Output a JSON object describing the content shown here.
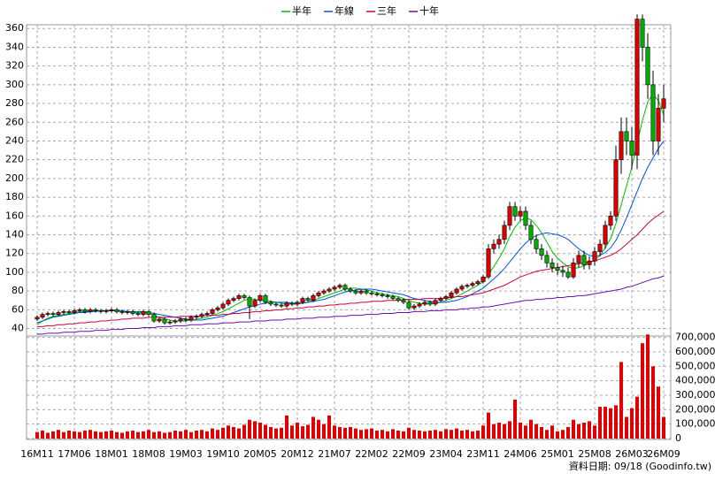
{
  "chart_data": {
    "type": "candlestick",
    "categories": [
      "16M11",
      null,
      null,
      null,
      null,
      null,
      null,
      "17M06",
      null,
      null,
      null,
      null,
      null,
      null,
      "18M01",
      null,
      null,
      null,
      null,
      null,
      null,
      "18M08",
      null,
      null,
      null,
      null,
      null,
      null,
      "19M03",
      null,
      null,
      null,
      null,
      null,
      null,
      "19M10",
      null,
      null,
      null,
      null,
      null,
      null,
      "20M05",
      null,
      null,
      null,
      null,
      null,
      null,
      "20M12",
      null,
      null,
      null,
      null,
      null,
      null,
      "21M07",
      null,
      null,
      null,
      null,
      null,
      null,
      "22M02",
      null,
      null,
      null,
      null,
      null,
      null,
      "22M09",
      null,
      null,
      null,
      null,
      null,
      null,
      "23M04",
      null,
      null,
      null,
      null,
      null,
      null,
      "23M11",
      null,
      null,
      null,
      null,
      null,
      null,
      "24M06",
      null,
      null,
      null,
      null,
      null,
      null,
      "25M01",
      null,
      null,
      null,
      null,
      null,
      null,
      "25M08",
      null,
      null,
      null,
      null,
      null,
      null,
      "26M03",
      null,
      null,
      null,
      null,
      null,
      "26M09"
    ],
    "open": [
      50,
      52,
      55,
      56,
      55,
      57,
      58,
      57,
      59,
      60,
      58,
      60,
      59,
      58,
      59,
      60,
      58,
      57,
      58,
      56,
      55,
      58,
      55,
      48,
      50,
      46,
      47,
      48,
      50,
      49,
      52,
      53,
      55,
      56,
      60,
      62,
      66,
      70,
      72,
      75,
      73,
      64,
      70,
      75,
      68,
      66,
      65,
      64,
      67,
      66,
      68,
      72,
      70,
      75,
      78,
      80,
      82,
      84,
      86,
      82,
      80,
      78,
      80,
      78,
      77,
      76,
      75,
      74,
      72,
      70,
      68,
      62,
      64,
      66,
      68,
      66,
      70,
      72,
      74,
      78,
      82,
      85,
      86,
      88,
      90,
      95,
      125,
      130,
      135,
      150,
      170,
      160,
      165,
      150,
      135,
      125,
      118,
      110,
      105,
      102,
      100,
      95,
      110,
      118,
      108,
      112,
      122,
      130,
      150,
      160,
      220,
      250,
      240,
      225,
      370,
      340,
      300,
      240,
      275
    ],
    "high": [
      54,
      57,
      58,
      58,
      59,
      60,
      60,
      61,
      62,
      62,
      62,
      62,
      61,
      61,
      62,
      62,
      60,
      60,
      60,
      58,
      60,
      60,
      57,
      52,
      52,
      49,
      50,
      52,
      52,
      54,
      55,
      57,
      58,
      62,
      64,
      68,
      72,
      74,
      77,
      77,
      75,
      72,
      77,
      77,
      70,
      68,
      67,
      69,
      69,
      70,
      74,
      74,
      77,
      80,
      82,
      84,
      86,
      88,
      88,
      84,
      82,
      82,
      82,
      80,
      79,
      78,
      77,
      76,
      74,
      72,
      70,
      66,
      68,
      70,
      70,
      72,
      74,
      76,
      80,
      84,
      87,
      88,
      90,
      92,
      97,
      130,
      135,
      140,
      155,
      175,
      175,
      170,
      170,
      155,
      140,
      130,
      123,
      115,
      110,
      107,
      105,
      115,
      123,
      123,
      117,
      127,
      135,
      155,
      165,
      235,
      265,
      265,
      255,
      375,
      375,
      355,
      315,
      290,
      300
    ],
    "low": [
      48,
      50,
      53,
      53,
      53,
      55,
      55,
      55,
      57,
      56,
      56,
      57,
      56,
      56,
      57,
      56,
      55,
      55,
      54,
      53,
      53,
      53,
      46,
      46,
      44,
      44,
      45,
      46,
      47,
      47,
      50,
      51,
      53,
      54,
      58,
      60,
      64,
      68,
      70,
      71,
      50,
      62,
      68,
      66,
      64,
      63,
      62,
      62,
      64,
      64,
      66,
      68,
      68,
      73,
      76,
      78,
      80,
      82,
      80,
      78,
      76,
      76,
      76,
      75,
      74,
      73,
      72,
      70,
      68,
      66,
      60,
      60,
      62,
      64,
      64,
      64,
      68,
      70,
      72,
      76,
      80,
      83,
      84,
      86,
      88,
      93,
      120,
      125,
      130,
      145,
      155,
      155,
      145,
      130,
      120,
      113,
      105,
      100,
      97,
      95,
      93,
      93,
      105,
      103,
      103,
      107,
      117,
      125,
      145,
      155,
      205,
      225,
      210,
      210,
      325,
      285,
      225,
      225,
      260
    ],
    "close": [
      52,
      55,
      56,
      55,
      57,
      58,
      57,
      59,
      60,
      58,
      60,
      59,
      58,
      59,
      60,
      58,
      57,
      58,
      56,
      55,
      58,
      55,
      48,
      50,
      46,
      47,
      48,
      50,
      49,
      52,
      53,
      55,
      56,
      60,
      62,
      66,
      70,
      72,
      75,
      73,
      64,
      70,
      75,
      68,
      66,
      65,
      64,
      67,
      66,
      68,
      72,
      70,
      75,
      78,
      80,
      82,
      84,
      86,
      82,
      80,
      78,
      80,
      78,
      77,
      76,
      75,
      74,
      72,
      70,
      68,
      62,
      64,
      66,
      68,
      66,
      70,
      72,
      74,
      78,
      82,
      85,
      86,
      88,
      90,
      95,
      125,
      130,
      135,
      150,
      170,
      160,
      165,
      150,
      135,
      125,
      118,
      110,
      105,
      102,
      100,
      95,
      110,
      118,
      108,
      112,
      122,
      130,
      150,
      160,
      220,
      250,
      240,
      225,
      370,
      340,
      300,
      240,
      275,
      285
    ],
    "up_color": "#e00000",
    "down_color": "#00b000",
    "ylim": [
      32,
      364
    ],
    "yticks": [
      40,
      60,
      80,
      100,
      120,
      140,
      160,
      180,
      200,
      220,
      240,
      260,
      280,
      300,
      320,
      340,
      360
    ],
    "grid": true,
    "legend": "top",
    "series": [
      {
        "name": "半年",
        "color": "#00c000",
        "values": [
          44,
          48,
          51,
          53,
          54,
          55,
          56,
          57,
          58,
          58,
          59,
          59,
          59,
          59,
          59,
          59,
          58,
          58,
          57,
          57,
          57,
          56,
          54,
          52,
          50,
          49,
          48,
          48,
          48,
          49,
          50,
          51,
          52,
          54,
          56,
          58,
          61,
          64,
          67,
          70,
          72,
          71,
          70,
          70,
          69,
          68,
          67,
          66,
          66,
          66,
          67,
          68,
          70,
          72,
          74,
          76,
          78,
          80,
          82,
          83,
          83,
          82,
          81,
          80,
          78,
          77,
          76,
          75,
          74,
          72,
          70,
          68,
          67,
          66,
          66,
          67,
          68,
          70,
          72,
          74,
          77,
          80,
          83,
          86,
          90,
          98,
          106,
          115,
          125,
          138,
          148,
          155,
          158,
          156,
          150,
          142,
          132,
          122,
          115,
          110,
          106,
          104,
          105,
          107,
          110,
          113,
          118,
          126,
          136,
          152,
          172,
          192,
          212,
          238,
          262,
          282,
          290,
          283,
          268
        ]
      },
      {
        "name": "年線",
        "color": "#0050f0",
        "values": [
          46,
          48,
          50,
          52,
          53,
          54,
          55,
          56,
          57,
          57,
          58,
          58,
          59,
          59,
          59,
          59,
          59,
          58,
          58,
          58,
          58,
          57,
          56,
          55,
          54,
          53,
          52,
          51,
          50,
          49,
          49,
          49,
          50,
          51,
          52,
          53,
          55,
          57,
          59,
          61,
          63,
          64,
          66,
          67,
          68,
          68,
          68,
          68,
          67,
          67,
          67,
          68,
          69,
          70,
          71,
          73,
          75,
          77,
          79,
          80,
          81,
          82,
          82,
          82,
          81,
          80,
          79,
          78,
          77,
          76,
          74,
          72,
          71,
          70,
          69,
          68,
          68,
          68,
          69,
          70,
          72,
          74,
          77,
          80,
          83,
          88,
          93,
          98,
          104,
          111,
          118,
          125,
          131,
          136,
          139,
          141,
          142,
          141,
          140,
          138,
          135,
          130,
          125,
          121,
          118,
          117,
          118,
          121,
          126,
          134,
          145,
          158,
          172,
          186,
          200,
          212,
          222,
          232,
          240
        ]
      },
      {
        "name": "三年",
        "color": "#d0003c",
        "values": [
          42,
          42,
          43,
          43,
          44,
          44,
          45,
          45,
          46,
          46,
          47,
          47,
          48,
          48,
          49,
          49,
          50,
          50,
          51,
          51,
          51,
          52,
          52,
          52,
          52,
          52,
          52,
          53,
          53,
          53,
          53,
          53,
          54,
          54,
          54,
          55,
          55,
          56,
          56,
          57,
          57,
          58,
          58,
          59,
          59,
          60,
          60,
          61,
          61,
          62,
          62,
          63,
          63,
          64,
          64,
          65,
          65,
          66,
          66,
          67,
          67,
          68,
          68,
          69,
          69,
          69,
          70,
          70,
          70,
          71,
          71,
          71,
          71,
          72,
          72,
          72,
          72,
          73,
          73,
          74,
          74,
          75,
          76,
          77,
          78,
          80,
          82,
          84,
          86,
          89,
          92,
          95,
          97,
          99,
          101,
          102,
          103,
          104,
          105,
          106,
          107,
          108,
          109,
          110,
          111,
          112,
          114,
          116,
          118,
          121,
          125,
          130,
          135,
          140,
          146,
          152,
          157,
          161,
          165
        ]
      },
      {
        "name": "十年",
        "color": "#6a10b0",
        "values": [
          34,
          34,
          35,
          35,
          35,
          36,
          36,
          36,
          37,
          37,
          37,
          38,
          38,
          38,
          39,
          39,
          39,
          40,
          40,
          40,
          41,
          41,
          41,
          42,
          42,
          42,
          43,
          43,
          43,
          44,
          44,
          44,
          45,
          45,
          45,
          46,
          46,
          46,
          47,
          47,
          47,
          48,
          48,
          48,
          49,
          49,
          49,
          50,
          50,
          50,
          51,
          51,
          51,
          52,
          52,
          52,
          53,
          53,
          53,
          54,
          54,
          54,
          55,
          55,
          55,
          56,
          56,
          56,
          57,
          57,
          57,
          58,
          58,
          58,
          59,
          59,
          59,
          60,
          60,
          60,
          61,
          61,
          62,
          62,
          63,
          63,
          64,
          65,
          66,
          67,
          68,
          69,
          70,
          70,
          71,
          71,
          72,
          72,
          73,
          73,
          74,
          74,
          75,
          75,
          76,
          77,
          78,
          79,
          80,
          81,
          82,
          84,
          85,
          87,
          89,
          91,
          93,
          94,
          96
        ]
      }
    ],
    "volume": {
      "color": "#e00000",
      "values": [
        45000,
        55000,
        40000,
        50000,
        60000,
        45000,
        55000,
        50000,
        45000,
        55000,
        60000,
        50000,
        45000,
        50000,
        55000,
        45000,
        40000,
        50000,
        55000,
        45000,
        50000,
        60000,
        45000,
        50000,
        40000,
        45000,
        55000,
        50000,
        60000,
        45000,
        55000,
        60000,
        50000,
        70000,
        60000,
        75000,
        90000,
        80000,
        70000,
        95000,
        130000,
        120000,
        110000,
        95000,
        80000,
        70000,
        75000,
        160000,
        90000,
        110000,
        85000,
        95000,
        150000,
        130000,
        100000,
        160000,
        90000,
        80000,
        75000,
        80000,
        70000,
        60000,
        65000,
        70000,
        55000,
        60000,
        50000,
        65000,
        55000,
        50000,
        75000,
        60000,
        55000,
        50000,
        55000,
        60000,
        50000,
        65000,
        60000,
        70000,
        55000,
        60000,
        50000,
        55000,
        90000,
        180000,
        100000,
        110000,
        100000,
        120000,
        270000,
        110000,
        90000,
        130000,
        100000,
        80000,
        60000,
        90000,
        50000,
        60000,
        80000,
        130000,
        100000,
        110000,
        120000,
        90000,
        220000,
        220000,
        210000,
        230000,
        530000,
        150000,
        210000,
        290000,
        660000,
        720000,
        500000,
        360000,
        150000
      ],
      "ylim": [
        0,
        710000
      ],
      "yticks": [
        0,
        {
          "value": 100000,
          "label": "100,000"
        },
        {
          "value": 200000,
          "label": "200,000"
        },
        {
          "value": 300000,
          "label": "300,000"
        },
        {
          "value": 400000,
          "label": "400,000"
        },
        {
          "value": 500000,
          "label": "500,000"
        },
        {
          "value": 600000,
          "label": "600,000"
        },
        {
          "value": 700000,
          "label": "700,000"
        }
      ]
    },
    "footer": "資料日期: 09/18 (Goodinfo.tw)"
  }
}
